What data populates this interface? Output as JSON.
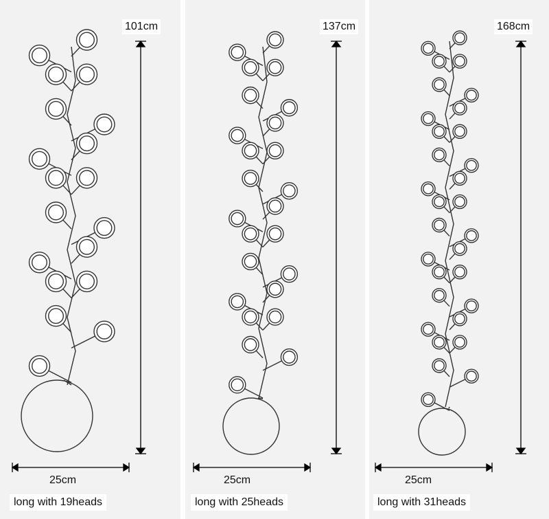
{
  "products": [
    {
      "height_label": "101cm",
      "width_label": "25cm",
      "caption": "long with 19heads",
      "heads": 19
    },
    {
      "height_label": "137cm",
      "width_label": "25cm",
      "caption": "long with 25heads",
      "heads": 25
    },
    {
      "height_label": "168cm",
      "width_label": "25cm",
      "caption": "long with 31heads",
      "heads": 31
    }
  ],
  "colors": {
    "stroke": "#333333",
    "panel_bg": "#f2f2f2",
    "label_bg": "#ffffff"
  }
}
